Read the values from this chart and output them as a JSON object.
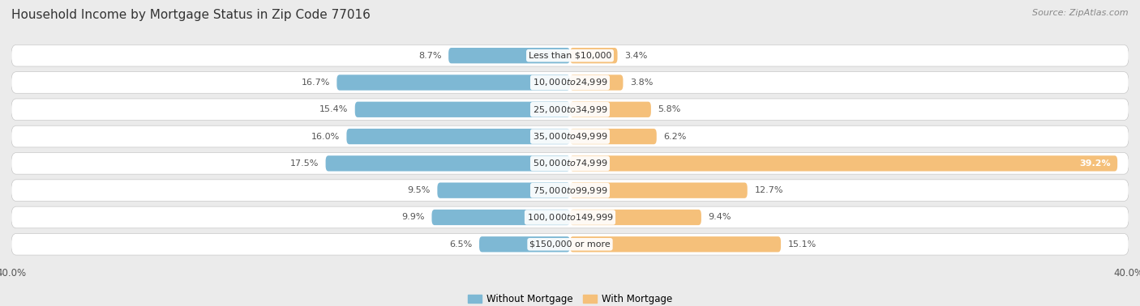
{
  "title": "Household Income by Mortgage Status in Zip Code 77016",
  "source": "Source: ZipAtlas.com",
  "categories": [
    "Less than $10,000",
    "$10,000 to $24,999",
    "$25,000 to $34,999",
    "$35,000 to $49,999",
    "$50,000 to $74,999",
    "$75,000 to $99,999",
    "$100,000 to $149,999",
    "$150,000 or more"
  ],
  "without_mortgage": [
    8.7,
    16.7,
    15.4,
    16.0,
    17.5,
    9.5,
    9.9,
    6.5
  ],
  "with_mortgage": [
    3.4,
    3.8,
    5.8,
    6.2,
    39.2,
    12.7,
    9.4,
    15.1
  ],
  "without_mortgage_color": "#7EB8D4",
  "with_mortgage_color": "#F5C07A",
  "axis_max": 40.0,
  "bg_color": "#EBEBEB",
  "row_bg_color": "#E0E0E0",
  "title_fontsize": 11,
  "label_fontsize": 8,
  "tick_fontsize": 8.5,
  "legend_fontsize": 8.5,
  "source_fontsize": 8
}
